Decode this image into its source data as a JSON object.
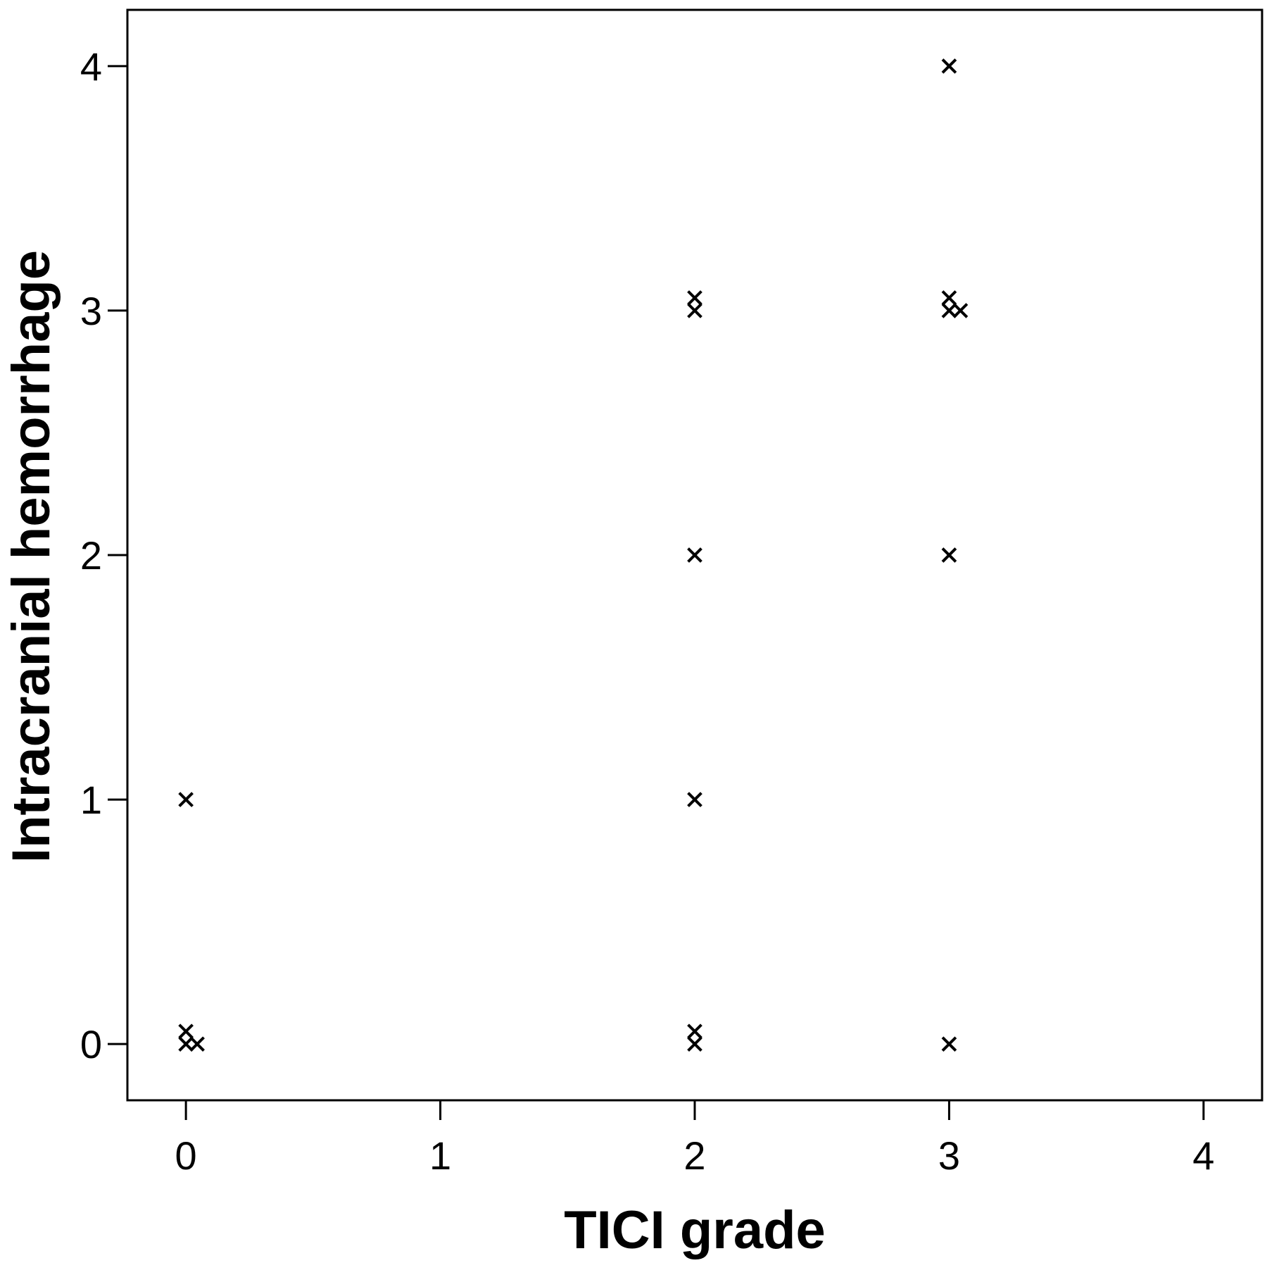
{
  "chart_data": {
    "type": "scatter",
    "title": "",
    "xlabel": "TICI grade",
    "ylabel": "Intracranial hemorrhage",
    "xlim": [
      -0.23,
      4.23
    ],
    "ylim": [
      -0.23,
      4.23
    ],
    "xticks": [
      0,
      1,
      2,
      3,
      4
    ],
    "yticks": [
      0,
      1,
      2,
      3,
      4
    ],
    "xtick_labels": [
      "0",
      "1",
      "2",
      "3",
      "4"
    ],
    "ytick_labels": [
      "0",
      "1",
      "2",
      "3",
      "4"
    ],
    "grid": false,
    "marker": "x",
    "series": [
      {
        "points": [
          {
            "x": 0,
            "y": 0
          },
          {
            "x": 0,
            "y": 0
          },
          {
            "x": 0,
            "y": 0
          },
          {
            "x": 0,
            "y": 1
          },
          {
            "x": 2,
            "y": 0
          },
          {
            "x": 2,
            "y": 0
          },
          {
            "x": 2,
            "y": 1
          },
          {
            "x": 2,
            "y": 2
          },
          {
            "x": 2,
            "y": 3
          },
          {
            "x": 2,
            "y": 3
          },
          {
            "x": 3,
            "y": 0
          },
          {
            "x": 3,
            "y": 2
          },
          {
            "x": 3,
            "y": 3
          },
          {
            "x": 3,
            "y": 3
          },
          {
            "x": 3,
            "y": 3
          },
          {
            "x": 3,
            "y": 4
          }
        ]
      }
    ]
  }
}
